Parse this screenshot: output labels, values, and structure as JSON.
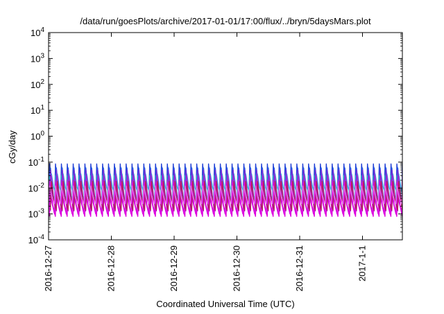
{
  "chart_data": {
    "type": "line",
    "title": "/data/run/goesPlots/archive/2017-01-01/17:00/flux/../bryn/5daysMars.plot",
    "xlabel": "Coordinated Universal Time (UTC)",
    "ylabel": "cGy/day",
    "yscale": "log",
    "ylim": [
      0.0001,
      10000
    ],
    "xlim": [
      "2016-12-27 00:00",
      "2017-01-01 17:00"
    ],
    "grid": "none",
    "legend": "none",
    "y_ticks": [
      {
        "base": "10",
        "exp": "-4",
        "value": 0.0001
      },
      {
        "base": "10",
        "exp": "-3",
        "value": 0.001
      },
      {
        "base": "10",
        "exp": "-2",
        "value": 0.01
      },
      {
        "base": "10",
        "exp": "-1",
        "value": 0.1
      },
      {
        "base": "10",
        "exp": "0",
        "value": 1
      },
      {
        "base": "10",
        "exp": "1",
        "value": 10
      },
      {
        "base": "10",
        "exp": "2",
        "value": 100
      },
      {
        "base": "10",
        "exp": "3",
        "value": 1000
      },
      {
        "base": "10",
        "exp": "4",
        "value": 10000
      }
    ],
    "x_ticks": [
      "2016-12-27",
      "2016-12-28",
      "2016-12-29",
      "2016-12-30",
      "2016-12-31",
      "2017-1-1"
    ],
    "sawtooth_period_hours": 2.25,
    "series": [
      {
        "color": "#1f3fd6",
        "peak": 0.085,
        "trough": 0.0025
      },
      {
        "color": "#2468e6",
        "peak": 0.06,
        "trough": 0.002
      },
      {
        "color": "#2ab7dd",
        "peak": 0.035,
        "trough": 0.0055
      },
      {
        "color": "#18c9c4",
        "peak": 0.03,
        "trough": 0.0035
      },
      {
        "color": "#7a2ad8",
        "peak": 0.05,
        "trough": 0.0016
      },
      {
        "color": "#a22bd6",
        "peak": 0.03,
        "trough": 0.0013
      },
      {
        "color": "#c81ed8",
        "peak": 0.02,
        "trough": 0.001
      },
      {
        "color": "#e000e0",
        "peak": 0.016,
        "trough": 0.0008
      },
      {
        "color": "#b0225a",
        "peak": 0.018,
        "trough": 0.0014
      },
      {
        "color": "#e36de6",
        "peak": 0.012,
        "trough": 0.0025
      }
    ]
  }
}
